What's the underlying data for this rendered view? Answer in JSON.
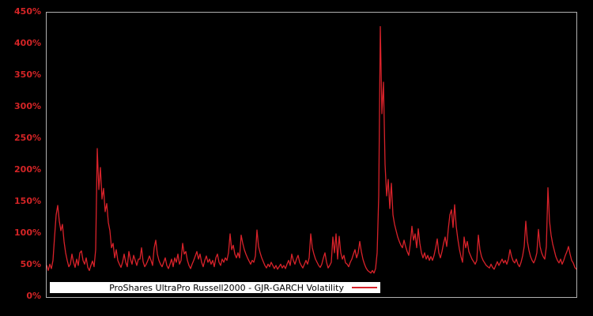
{
  "colors": {
    "background": "#000000",
    "plot_border": "#b0b0b0",
    "tick_label": "#d42426",
    "series_line": "#d8222a",
    "legend_background": "#ffffff",
    "legend_text": "#000000"
  },
  "chart_data": {
    "type": "line",
    "title": "",
    "xlabel": "",
    "ylabel": "",
    "legend_label": "ProShares UltraPro Russell2000 - GJR-GARCH Volatility",
    "legend_position": "bottom-inside",
    "grid": false,
    "ylim": [
      0,
      450
    ],
    "yticks": [
      {
        "label": "0%",
        "value": 0
      },
      {
        "label": "50%",
        "value": 50
      },
      {
        "label": "100%",
        "value": 100
      },
      {
        "label": "150%",
        "value": 150
      },
      {
        "label": "200%",
        "value": 200
      },
      {
        "label": "250%",
        "value": 250
      },
      {
        "label": "300%",
        "value": 300
      },
      {
        "label": "350%",
        "value": 350
      },
      {
        "label": "400%",
        "value": 400
      },
      {
        "label": "450%",
        "value": 450
      }
    ],
    "xticks": [],
    "series": [
      {
        "name": "ProShares UltraPro Russell2000 - GJR-GARCH Volatility",
        "color": "#d8222a",
        "unit": "percent",
        "values_pct": [
          50,
          42,
          52,
          45,
          58,
          95,
          130,
          145,
          120,
          105,
          115,
          88,
          70,
          58,
          48,
          52,
          68,
          55,
          47,
          60,
          50,
          70,
          73,
          58,
          52,
          62,
          47,
          42,
          50,
          57,
          48,
          75,
          235,
          170,
          205,
          155,
          172,
          135,
          148,
          118,
          105,
          78,
          85,
          62,
          75,
          58,
          52,
          47,
          55,
          68,
          55,
          48,
          72,
          60,
          52,
          66,
          58,
          50,
          60,
          60,
          78,
          56,
          48,
          52,
          58,
          65,
          58,
          50,
          78,
          90,
          68,
          58,
          52,
          48,
          55,
          62,
          50,
          45,
          52,
          60,
          48,
          62,
          55,
          68,
          52,
          58,
          85,
          68,
          72,
          58,
          50,
          45,
          52,
          58,
          65,
          72,
          60,
          68,
          55,
          48,
          58,
          65,
          55,
          60,
          52,
          58,
          48,
          62,
          68,
          55,
          50,
          60,
          55,
          62,
          58,
          70,
          100,
          75,
          82,
          68,
          62,
          70,
          62,
          98,
          85,
          75,
          68,
          62,
          57,
          52,
          58,
          55,
          65,
          106,
          80,
          70,
          62,
          56,
          50,
          46,
          52,
          48,
          55,
          50,
          45,
          50,
          44,
          48,
          52,
          46,
          50,
          45,
          52,
          58,
          50,
          68,
          58,
          52,
          60,
          66,
          55,
          50,
          46,
          52,
          58,
          52,
          62,
          100,
          78,
          68,
          60,
          55,
          50,
          47,
          52,
          62,
          70,
          55,
          46,
          50,
          55,
          95,
          70,
          100,
          60,
          96,
          70,
          60,
          66,
          54,
          52,
          48,
          55,
          60,
          68,
          75,
          62,
          70,
          88,
          72,
          60,
          52,
          46,
          42,
          40,
          38,
          42,
          38,
          45,
          70,
          160,
          428,
          290,
          340,
          210,
          160,
          186,
          140,
          180,
          130,
          115,
          105,
          95,
          88,
          82,
          78,
          90,
          80,
          72,
          66,
          85,
          112,
          90,
          100,
          78,
          108,
          85,
          70,
          62,
          70,
          60,
          66,
          58,
          64,
          58,
          66,
          78,
          92,
          70,
          62,
          72,
          85,
          95,
          80,
          108,
          130,
          138,
          110,
          146,
          112,
          92,
          76,
          64,
          55,
          95,
          78,
          88,
          72,
          66,
          60,
          56,
          52,
          58,
          98,
          75,
          64,
          58,
          54,
          50,
          48,
          46,
          52,
          47,
          44,
          50,
          56,
          50,
          55,
          60,
          54,
          58,
          52,
          60,
          75,
          64,
          57,
          54,
          60,
          52,
          48,
          55,
          65,
          80,
          120,
          88,
          74,
          64,
          58,
          54,
          60,
          70,
          107,
          80,
          70,
          64,
          60,
          80,
          173,
          120,
          98,
          84,
          74,
          64,
          58,
          54,
          60,
          52,
          58,
          66,
          72,
          80,
          68,
          58,
          54,
          47,
          44
        ]
      }
    ]
  }
}
